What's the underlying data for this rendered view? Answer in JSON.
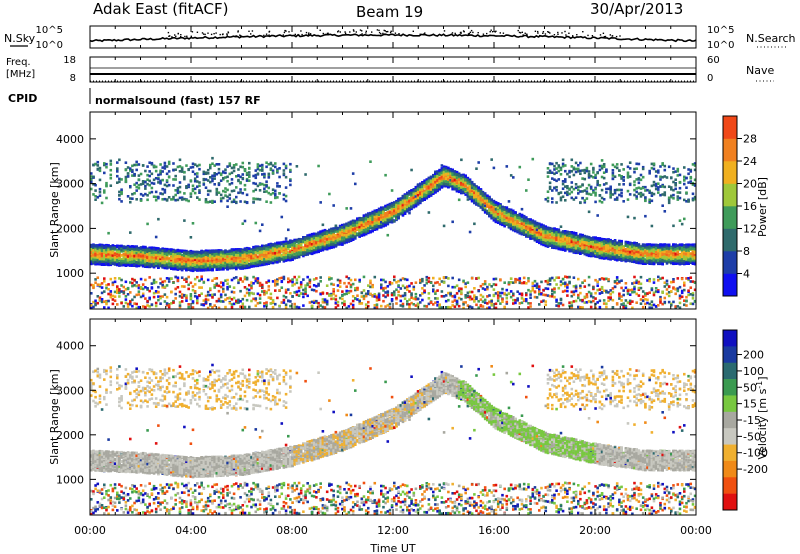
{
  "header": {
    "station": "Adak East (fitACF)",
    "beam": "Beam 19",
    "date": "30/Apr/2013"
  },
  "left_labels": {
    "nsky": "N.Sky",
    "freq_line1": "Freq.",
    "freq_line2": "[MHz]",
    "cpid": "CPID"
  },
  "right_labels": {
    "nsearch": "N.Search",
    "nave": "Nave"
  },
  "program": "normalsound (fast) 157 RF",
  "colors": {
    "power": [
      "#1010f0",
      "#1e3ea8",
      "#2f6a6c",
      "#3f9b5a",
      "#9fc83a",
      "#f0b020",
      "#f08020",
      "#f04818",
      "#e01010"
    ],
    "velocity": [
      "#e01010",
      "#f05010",
      "#f08a18",
      "#f0b030",
      "#c8c8c0",
      "#a8a8a0",
      "#78c840",
      "#3a9a50",
      "#2a6a70",
      "#1a3aa0",
      "#1010c0"
    ]
  },
  "chart_data": [
    {
      "type": "line",
      "title": "Noise (N.Sky / N.Search)",
      "y_tick_labels": [
        "10^5",
        "10^0"
      ],
      "y_right_tick_labels": [
        "10^5",
        "10^0"
      ],
      "x_range_hours": [
        0,
        24
      ]
    },
    {
      "type": "line",
      "title": "Frequency / Nave",
      "y_ticks": [
        8,
        18
      ],
      "y_right_ticks": [
        0,
        60
      ],
      "freq_mhz_approx": 10,
      "x_range_hours": [
        0,
        24
      ]
    },
    {
      "type": "heatmap",
      "title": "Power",
      "ylabel": "Slant Range [km]",
      "yticks": [
        1000,
        2000,
        3000,
        4000
      ],
      "ylim": [
        200,
        4600
      ],
      "x_range_hours": [
        0,
        24
      ],
      "colorbar_label": "Power [dB]",
      "colorbar_ticks": [
        4,
        8,
        12,
        16,
        20,
        24,
        28
      ],
      "echo_band_centre_km": [
        [
          0,
          1450
        ],
        [
          2,
          1400
        ],
        [
          4,
          1300
        ],
        [
          6,
          1350
        ],
        [
          8,
          1550
        ],
        [
          10,
          1900
        ],
        [
          12,
          2400
        ],
        [
          13,
          2800
        ],
        [
          14,
          3200
        ],
        [
          14.8,
          3000
        ],
        [
          16,
          2400
        ],
        [
          18,
          1850
        ],
        [
          20,
          1600
        ],
        [
          22,
          1450
        ],
        [
          24,
          1450
        ]
      ]
    },
    {
      "type": "heatmap",
      "title": "Velocity",
      "ylabel": "Slant Range [km]",
      "yticks": [
        1000,
        2000,
        3000,
        4000
      ],
      "ylim": [
        200,
        4600
      ],
      "x_range_hours": [
        0,
        24
      ],
      "xlabel": "Time UT",
      "xticks": [
        "00:00",
        "04:00",
        "08:00",
        "12:00",
        "16:00",
        "20:00",
        "00:00"
      ],
      "colorbar_label": "Velocity [m s^-1]",
      "colorbar_ticks": [
        200,
        100,
        50,
        15,
        -15,
        -50,
        -100,
        -200
      ]
    }
  ]
}
